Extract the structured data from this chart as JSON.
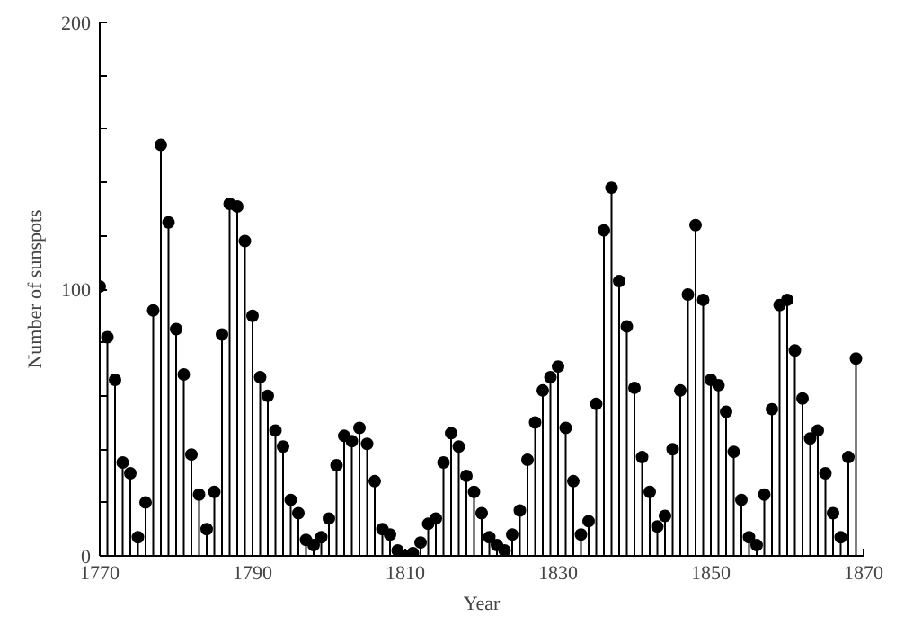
{
  "chart_data": {
    "type": "lollipop",
    "xlabel": "Year",
    "ylabel": "Number of sunspots",
    "x": [
      1770,
      1771,
      1772,
      1773,
      1774,
      1775,
      1776,
      1777,
      1778,
      1779,
      1780,
      1781,
      1782,
      1783,
      1784,
      1785,
      1786,
      1787,
      1788,
      1789,
      1790,
      1791,
      1792,
      1793,
      1794,
      1795,
      1796,
      1797,
      1798,
      1799,
      1800,
      1801,
      1802,
      1803,
      1804,
      1805,
      1806,
      1807,
      1808,
      1809,
      1810,
      1811,
      1812,
      1813,
      1814,
      1815,
      1816,
      1817,
      1818,
      1819,
      1820,
      1821,
      1822,
      1823,
      1824,
      1825,
      1826,
      1827,
      1828,
      1829,
      1830,
      1831,
      1832,
      1833,
      1834,
      1835,
      1836,
      1837,
      1838,
      1839,
      1840,
      1841,
      1842,
      1843,
      1844,
      1845,
      1846,
      1847,
      1848,
      1849,
      1850,
      1851,
      1852,
      1853,
      1854,
      1855,
      1856,
      1857,
      1858,
      1859,
      1860,
      1861,
      1862,
      1863,
      1864,
      1865,
      1866,
      1867,
      1868,
      1869
    ],
    "values": [
      101,
      82,
      66,
      35,
      31,
      7,
      20,
      92,
      154,
      125,
      85,
      68,
      38,
      23,
      10,
      24,
      83,
      132,
      131,
      118,
      90,
      67,
      60,
      47,
      41,
      21,
      16,
      6,
      4,
      7,
      14,
      34,
      45,
      43,
      48,
      42,
      28,
      10,
      8,
      2,
      0,
      1,
      5,
      12,
      14,
      35,
      46,
      41,
      30,
      24,
      16,
      7,
      4,
      2,
      8,
      17,
      36,
      50,
      62,
      67,
      71,
      48,
      28,
      8,
      13,
      57,
      122,
      138,
      103,
      86,
      63,
      37,
      24,
      11,
      15,
      40,
      62,
      98,
      124,
      96,
      66,
      64,
      54,
      39,
      21,
      7,
      4,
      23,
      55,
      94,
      96,
      77,
      59,
      44,
      47,
      31,
      16,
      7,
      37,
      74
    ],
    "color": "#000000",
    "marker": "circle",
    "xlim": [
      1770,
      1870
    ],
    "xticks": [
      1770,
      1790,
      1810,
      1830,
      1850,
      1870
    ],
    "ylim": [
      0,
      200
    ],
    "yticks": [
      0,
      {
        "value": 20,
        "label": null
      },
      {
        "value": 40,
        "label": null
      },
      {
        "value": 60,
        "label": null
      },
      {
        "value": 80,
        "label": null
      },
      100,
      {
        "value": 120,
        "label": null
      },
      {
        "value": 140,
        "label": null
      },
      {
        "value": 160,
        "label": null
      },
      {
        "value": 180,
        "label": null
      },
      200
    ],
    "grid": false
  }
}
